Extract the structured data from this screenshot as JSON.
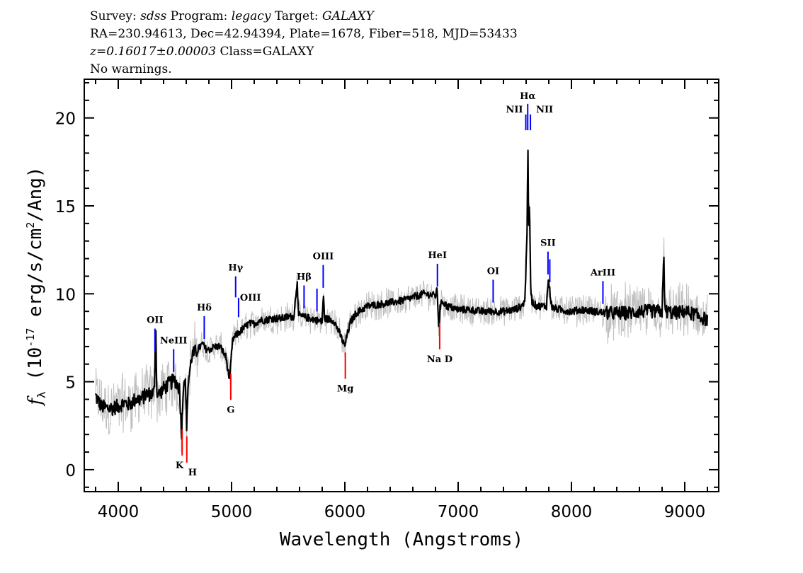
{
  "header": {
    "survey_label": "Survey:",
    "survey": "sdss",
    "program_label": "Program:",
    "program": "legacy",
    "target_label": "Target:",
    "target": "GALAXY",
    "coords": "RA=230.94613, Dec=42.94394, Plate=1678, Fiber=518, MJD=53433",
    "redshift": "z=0.16017±0.00003",
    "class": "Class=GALAXY",
    "warnings": "No warnings."
  },
  "chart_data": {
    "type": "line",
    "xlabel": "Wavelength (Angstroms)",
    "ylabel_main": "f",
    "ylabel_sub": "λ",
    "ylabel_rest": " (10",
    "ylabel_exp": "-17",
    "ylabel_units": " erg/s/cm",
    "ylabel_exp2": "2",
    "ylabel_end": "/Ang)",
    "xlim": [
      3700,
      9300
    ],
    "ylim": [
      -1.25,
      22.2
    ],
    "xticks": [
      4000,
      5000,
      6000,
      7000,
      8000,
      9000
    ],
    "yticks": [
      0,
      5,
      10,
      15,
      20
    ],
    "grid": false,
    "colors": {
      "flux": "#000000",
      "error": "#c0c0c0",
      "emission": "#0000ff",
      "absorption": "#ff0000"
    },
    "series": [
      {
        "x": [
          3800,
          3850,
          3900,
          3950,
          4000,
          4050,
          4100,
          4150,
          4200,
          4250,
          4300,
          4320,
          4330,
          4340,
          4360,
          4400,
          4450,
          4500,
          4540,
          4560,
          4575,
          4590,
          4605,
          4615,
          4650,
          4700,
          4750,
          4760,
          4800,
          4850,
          4900,
          4950,
          4985,
          4995,
          5010,
          5050,
          5100,
          5150,
          5200,
          5250,
          5300,
          5350,
          5400,
          5450,
          5500,
          5550,
          5580,
          5590,
          5620,
          5700,
          5750,
          5800,
          5810,
          5820,
          5900,
          5950,
          6000,
          6010,
          6050,
          6100,
          6200,
          6300,
          6400,
          6500,
          6600,
          6700,
          6800,
          6815,
          6830,
          6840,
          6860,
          6900,
          7000,
          7100,
          7200,
          7300,
          7400,
          7500,
          7560,
          7590,
          7600,
          7610,
          7615,
          7622,
          7630,
          7640,
          7650,
          7670,
          7700,
          7780,
          7795,
          7805,
          7815,
          7830,
          7900,
          8000,
          8100,
          8200,
          8300,
          8400,
          8500,
          8600,
          8700,
          8800,
          8815,
          8825,
          8850,
          8900,
          9000,
          9100,
          9200
        ],
        "y": [
          4.2,
          3.6,
          3.5,
          3.5,
          3.6,
          3.8,
          3.7,
          4.0,
          4.0,
          4.3,
          4.3,
          4.5,
          8.8,
          4.4,
          4.3,
          4.6,
          4.9,
          5.1,
          4.6,
          2.0,
          5.0,
          5.2,
          2.4,
          4.8,
          6.5,
          6.8,
          7.2,
          6.9,
          6.8,
          7.0,
          7.0,
          6.4,
          5.0,
          6.2,
          7.4,
          7.7,
          8.0,
          8.3,
          8.3,
          8.5,
          8.5,
          8.6,
          8.6,
          8.6,
          8.7,
          8.7,
          10.8,
          8.8,
          8.7,
          8.6,
          8.5,
          8.4,
          10.0,
          8.6,
          8.5,
          7.8,
          7.0,
          7.4,
          8.4,
          8.9,
          9.3,
          9.4,
          9.5,
          9.6,
          9.8,
          10.0,
          9.9,
          10.2,
          8.0,
          9.2,
          9.6,
          9.3,
          9.1,
          9.1,
          9.0,
          9.0,
          9.0,
          9.1,
          9.3,
          9.6,
          12.0,
          14.0,
          18.7,
          13.5,
          15.2,
          10.5,
          9.6,
          9.4,
          9.3,
          9.3,
          10.8,
          10.4,
          9.8,
          9.2,
          9.1,
          9.0,
          9.1,
          9.0,
          8.9,
          8.9,
          8.9,
          9.0,
          9.0,
          9.0,
          12.1,
          9.0,
          9.0,
          8.9,
          9.0,
          8.8,
          8.5
        ]
      }
    ],
    "lines": [
      {
        "label": "OII",
        "wavelength": 4324,
        "kind": "emission"
      },
      {
        "label": "NeIII",
        "wavelength": 4489,
        "kind": "emission"
      },
      {
        "label": "K",
        "wavelength": 4564,
        "kind": "absorption"
      },
      {
        "label": "H",
        "wavelength": 4605,
        "kind": "absorption"
      },
      {
        "label": "Hδ",
        "wavelength": 4759,
        "kind": "emission"
      },
      {
        "label": "G",
        "wavelength": 4993,
        "kind": "absorption"
      },
      {
        "label": "Hγ",
        "wavelength": 5036,
        "kind": "emission"
      },
      {
        "label": "OIII",
        "wavelength": 5062,
        "kind": "emission"
      },
      {
        "label": "Hβ",
        "wavelength": 5640,
        "kind": "emission"
      },
      {
        "label": "",
        "wavelength": 5754,
        "kind": "emission"
      },
      {
        "label": "OIII",
        "wavelength": 5809,
        "kind": "emission"
      },
      {
        "label": "Mg",
        "wavelength": 6004,
        "kind": "absorption"
      },
      {
        "label": "HeI",
        "wavelength": 6817,
        "kind": "emission"
      },
      {
        "label": "Na D",
        "wavelength": 6837,
        "kind": "absorption"
      },
      {
        "label": "OI",
        "wavelength": 7309,
        "kind": "emission"
      },
      {
        "label": "NII",
        "wavelength": 7597,
        "kind": "emission"
      },
      {
        "label": "Hα",
        "wavelength": 7614,
        "kind": "emission"
      },
      {
        "label": "NII",
        "wavelength": 7638,
        "kind": "emission"
      },
      {
        "label": "SII",
        "wavelength": 7793,
        "kind": "emission"
      },
      {
        "label": "",
        "wavelength": 7809,
        "kind": "emission"
      },
      {
        "label": "ArIII",
        "wavelength": 8278,
        "kind": "emission"
      }
    ]
  }
}
